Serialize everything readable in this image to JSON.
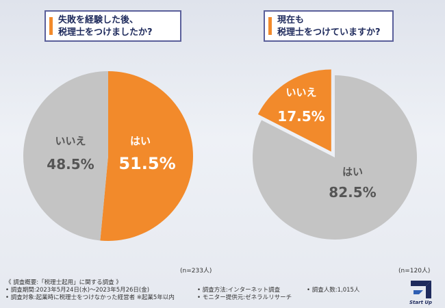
{
  "questions": {
    "q1_line1": "失敗を経験した後、",
    "q1_line2": "税理士をつけましたか?",
    "q2_line1": "現在も",
    "q2_line2": "税理士をつけていますか?"
  },
  "chart_data": [
    {
      "type": "pie",
      "title": "失敗を経験した後、税理士をつけましたか?",
      "labels": [
        "はい",
        "いいえ"
      ],
      "values": [
        51.5,
        48.5
      ],
      "value_labels": [
        "51.5%",
        "48.5%"
      ],
      "colors": [
        "#f28a2b",
        "#c4c4c4"
      ],
      "sample_size": "(n=233人)"
    },
    {
      "type": "pie",
      "title": "現在も税理士をつけていますか?",
      "labels": [
        "いいえ",
        "はい"
      ],
      "values": [
        17.5,
        82.5
      ],
      "value_labels": [
        "17.5%",
        "82.5%"
      ],
      "colors": [
        "#f28a2b",
        "#c4c4c4"
      ],
      "sample_size": "(n=120人)"
    }
  ],
  "footer": {
    "title": "《 調査概要:「税理士起用」に関する調査 》",
    "period": "• 調査期間:2023年5月24日(水)〜2023年5月26日(金)",
    "method": "• 調査方法:インターネット調査",
    "count": "• 調査人数:1,015人",
    "target": "• 調査対象:起業時に税理士をつけなかった経営者 ※起業5年以内",
    "monitor": "• モニター提供元:ゼネラルリサーチ"
  },
  "logo": {
    "text": "Start Up"
  }
}
